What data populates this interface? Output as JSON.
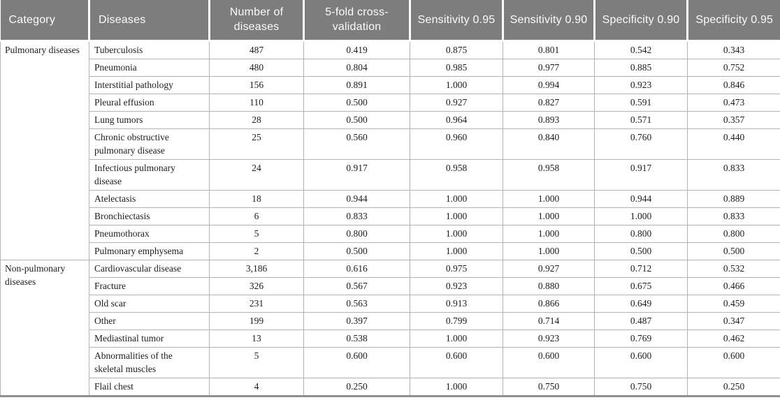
{
  "colors": {
    "header_bg": "#7d7d7d",
    "header_text": "#fcfcfc",
    "grid": "#b3b3b3",
    "bottom_border": "#8f8f8f",
    "text": "#1d1d1d"
  },
  "table": {
    "columns": [
      "Category",
      "Diseases",
      "Number of diseases",
      "5-fold cross-validation",
      "Sensitivity 0.95",
      "Sensitivity 0.90",
      "Specificity 0.90",
      "Specificity 0.95"
    ],
    "groups": [
      {
        "category": "Pulmonary diseases",
        "rows": [
          {
            "disease": "Tuberculosis",
            "values": [
              "487",
              "0.419",
              "0.875",
              "0.801",
              "0.542",
              "0.343"
            ]
          },
          {
            "disease": "Pneumonia",
            "values": [
              "480",
              "0.804",
              "0.985",
              "0.977",
              "0.885",
              "0.752"
            ]
          },
          {
            "disease": "Interstitial pathology",
            "values": [
              "156",
              "0.891",
              "1.000",
              "0.994",
              "0.923",
              "0.846"
            ]
          },
          {
            "disease": "Pleural effusion",
            "values": [
              "110",
              "0.500",
              "0.927",
              "0.827",
              "0.591",
              "0.473"
            ]
          },
          {
            "disease": "Lung tumors",
            "values": [
              "28",
              "0.500",
              "0.964",
              "0.893",
              "0.571",
              "0.357"
            ]
          },
          {
            "disease": "Chronic obstructive pulmonary disease",
            "values": [
              "25",
              "0.560",
              "0.960",
              "0.840",
              "0.760",
              "0.440"
            ]
          },
          {
            "disease": "Infectious pulmonary disease",
            "values": [
              "24",
              "0.917",
              "0.958",
              "0.958",
              "0.917",
              "0.833"
            ]
          },
          {
            "disease": "Atelectasis",
            "values": [
              "18",
              "0.944",
              "1.000",
              "1.000",
              "0.944",
              "0.889"
            ]
          },
          {
            "disease": "Bronchiectasis",
            "values": [
              "6",
              "0.833",
              "1.000",
              "1.000",
              "1.000",
              "0.833"
            ]
          },
          {
            "disease": "Pneumothorax",
            "values": [
              "5",
              "0.800",
              "1.000",
              "1.000",
              "0.800",
              "0.800"
            ]
          },
          {
            "disease": "Pulmonary emphysema",
            "values": [
              "2",
              "0.500",
              "1.000",
              "1.000",
              "0.500",
              "0.500"
            ]
          }
        ]
      },
      {
        "category": "Non-pulmonary diseases",
        "rows": [
          {
            "disease": "Cardiovascular disease",
            "values": [
              "3,186",
              "0.616",
              "0.975",
              "0.927",
              "0.712",
              "0.532"
            ]
          },
          {
            "disease": "Fracture",
            "values": [
              "326",
              "0.567",
              "0.923",
              "0.880",
              "0.675",
              "0.466"
            ]
          },
          {
            "disease": "Old scar",
            "values": [
              "231",
              "0.563",
              "0.913",
              "0.866",
              "0.649",
              "0.459"
            ]
          },
          {
            "disease": "Other",
            "values": [
              "199",
              "0.397",
              "0.799",
              "0.714",
              "0.487",
              "0.347"
            ]
          },
          {
            "disease": "Mediastinal tumor",
            "values": [
              "13",
              "0.538",
              "1.000",
              "0.923",
              "0.769",
              "0.462"
            ]
          },
          {
            "disease": "Abnormalities of the skeletal muscles",
            "values": [
              "5",
              "0.600",
              "0.600",
              "0.600",
              "0.600",
              "0.600"
            ]
          },
          {
            "disease": "Flail chest",
            "values": [
              "4",
              "0.250",
              "1.000",
              "0.750",
              "0.750",
              "0.250"
            ]
          }
        ]
      }
    ]
  }
}
